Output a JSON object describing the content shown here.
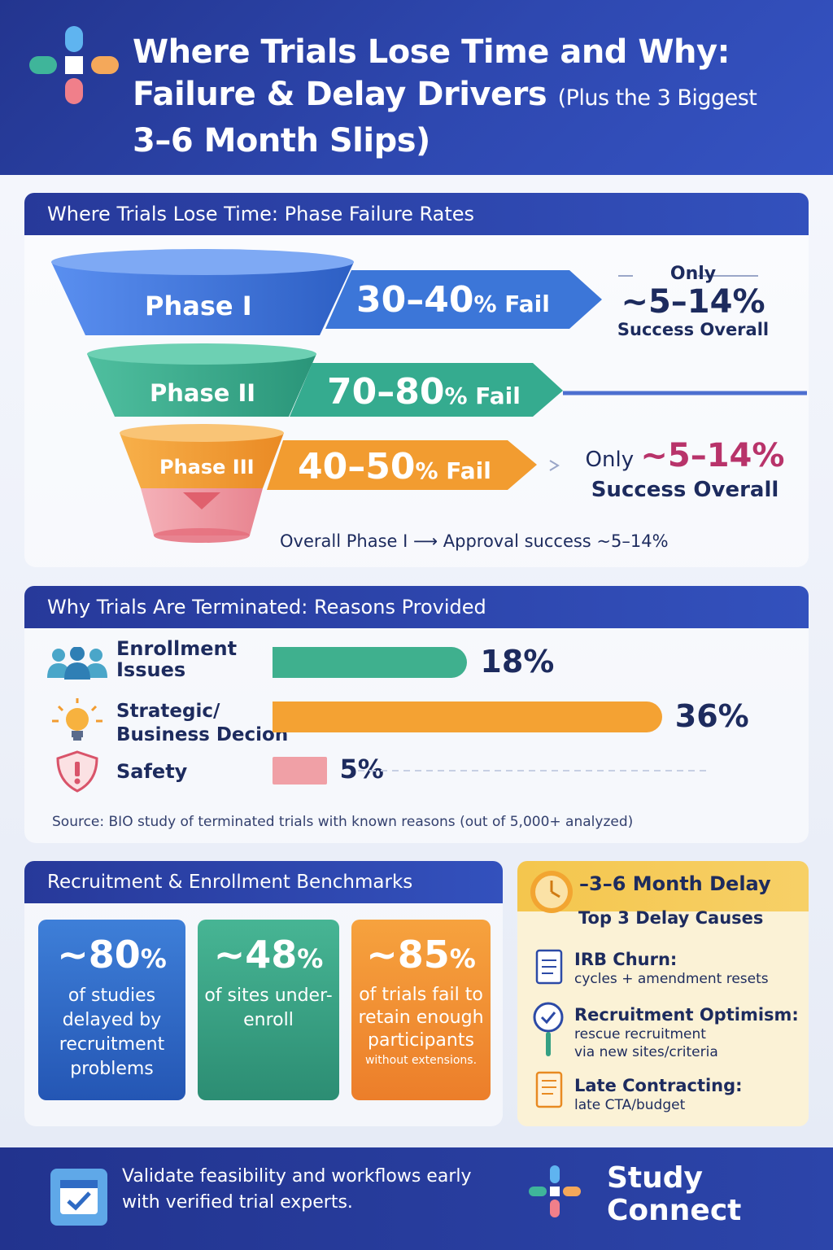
{
  "header": {
    "title_line1": "Where Trials Lose Time and Why:",
    "title_line2": "Failure & Delay Drivers",
    "title_line2_suffix": "(Plus the 3 Biggest",
    "title_line3": "3–6 Month Slips)"
  },
  "phase_section": {
    "heading": "Where Trials Lose Time: Phase Failure Rates",
    "phases": [
      {
        "label": "Phase I",
        "fail_value": "30–40",
        "fail_unit": "% Fail",
        "color": "#3e73d6"
      },
      {
        "label": "Phase II",
        "fail_value": "70–80",
        "fail_unit": "% Fail",
        "color": "#33a88d"
      },
      {
        "label": "Phase III",
        "fail_value": "40–50",
        "fail_unit": "% Fail",
        "color": "#f29a2e"
      }
    ],
    "callout1": {
      "only": "Only",
      "value": "~5–14%",
      "sub": "Success Overall"
    },
    "callout2": {
      "only": "Only",
      "value": "~5–14%",
      "sub": "Success Overall"
    },
    "overall": "Overall Phase I ⟶ Approval success ~5–14%"
  },
  "reasons_section": {
    "heading": "Why Trials Are Terminated: Reasons Provided",
    "reasons": [
      {
        "label_line1": "Enrollment",
        "label_line2": "Issues",
        "value": 18,
        "display": "18%",
        "color": "#3fb08e",
        "icon": "people-icon"
      },
      {
        "label_line1": "Strategic/",
        "label_line2": "Business Decion",
        "value": 36,
        "display": "36%",
        "color": "#f4a233",
        "icon": "lightbulb-icon"
      },
      {
        "label_line1": "Safety",
        "label_line2": "",
        "value": 5,
        "display": "5%",
        "color": "#f0a0a6",
        "icon": "shield-alert-icon"
      }
    ],
    "source": "Source: BIO study of terminated trials with known reasons (out of 5,000+ analyzed)"
  },
  "benchmarks_section": {
    "heading": "Recruitment & Enrollment Benchmarks",
    "cards": [
      {
        "big": "~80",
        "unit": "%",
        "text": "of studies delayed by recruitment problems",
        "small": "",
        "color": "#2f66c8"
      },
      {
        "big": "~48",
        "unit": "%",
        "text": "of sites under-enroll",
        "small": "",
        "color": "#35a083"
      },
      {
        "big": "~85",
        "unit": "%",
        "text": "of trials fail to retain enough participants",
        "small": "without extensions.",
        "color": "#f08a2c"
      }
    ]
  },
  "delay_section": {
    "heading": "–3–6 Month Delay",
    "subheading": "Top 3 Delay Causes",
    "causes": [
      {
        "title": "IRB Churn:",
        "desc_line1": "cycles + amendment resets",
        "desc_line2": "",
        "icon": "document-icon"
      },
      {
        "title": "Recruitment Optimism:",
        "desc_line1": "rescue recruitment",
        "desc_line2": "via new sites/criteria",
        "icon": "magnifier-check-icon"
      },
      {
        "title": "Late Contracting:",
        "desc_line1": "late CTA/budget",
        "desc_line2": "",
        "icon": "contract-icon"
      }
    ]
  },
  "footer": {
    "cta_line1": "Validate feasibility and workflows early",
    "cta_line2": "with verified trial experts.",
    "brand_line1": "Study",
    "brand_line2": "Connect"
  }
}
